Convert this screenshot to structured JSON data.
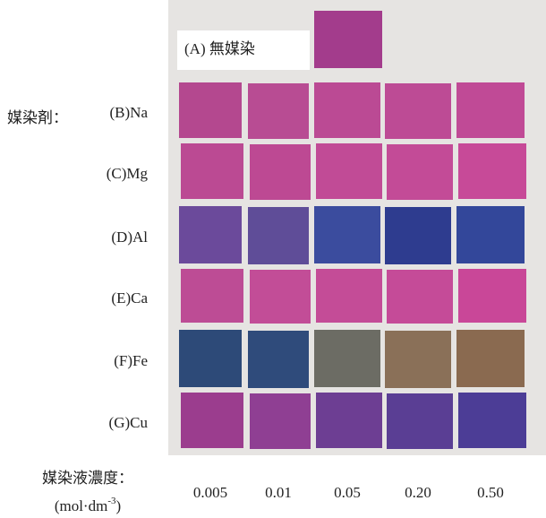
{
  "figure": {
    "top_label": "(A) 無媒染",
    "top_color": "#a33c8c",
    "mordant_prefix": "媒染剤：",
    "rows": [
      {
        "label": "(B)Na",
        "colors": [
          "#b4488f",
          "#b84c93",
          "#bb4a94",
          "#bd4b95",
          "#c04a96"
        ]
      },
      {
        "label": "(C)Mg",
        "colors": [
          "#bb4a93",
          "#bd4993",
          "#c14b96",
          "#c34b97",
          "#c74a98"
        ]
      },
      {
        "label": "(D)Al",
        "colors": [
          "#6b4a9b",
          "#5f4d98",
          "#3b4c9e",
          "#2e3c8f",
          "#33479a"
        ]
      },
      {
        "label": "(E)Ca",
        "colors": [
          "#bd4c95",
          "#c24d97",
          "#c44c97",
          "#c54b98",
          "#c94798"
        ]
      },
      {
        "label": "(F)Fe",
        "colors": [
          "#2d4a78",
          "#2f4b7b",
          "#6c6c64",
          "#8a7058",
          "#8a6a50"
        ]
      },
      {
        "label": "(G)Cu",
        "colors": [
          "#9b3d8e",
          "#8f3f93",
          "#6d3e93",
          "#5a3e94",
          "#4c3d96"
        ]
      }
    ],
    "concentration_label": "媒染液濃度：",
    "unit": {
      "open": "(mol·dm",
      "exponent": "-3",
      "close": ")"
    },
    "concentrations": [
      "0.005",
      "0.01",
      "0.05",
      "0.20",
      "0.50"
    ]
  }
}
